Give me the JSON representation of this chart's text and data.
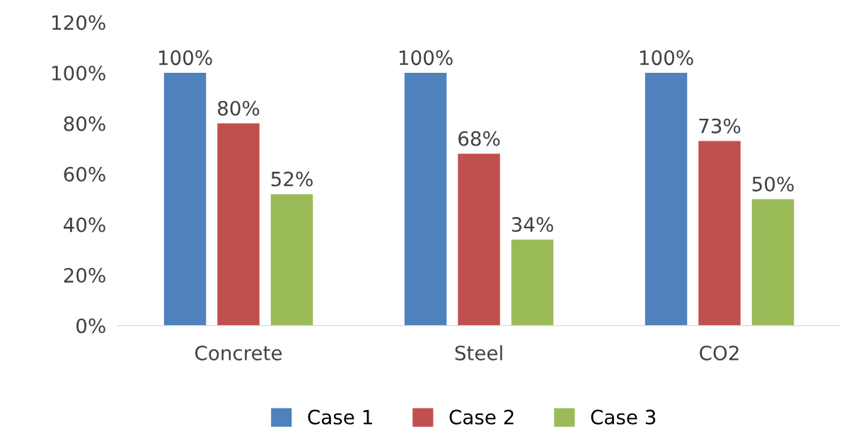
{
  "chart_data": {
    "type": "bar",
    "categories": [
      "Concrete",
      "Steel",
      "CO2"
    ],
    "series": [
      {
        "name": "Case 1",
        "color": "#4f81bd",
        "values": [
          100,
          100,
          100
        ],
        "value_labels": [
          "100%",
          "100%",
          "100%"
        ]
      },
      {
        "name": "Case 2",
        "color": "#c0504d",
        "values": [
          80,
          68,
          73
        ],
        "value_labels": [
          "80%",
          "68%",
          "73%"
        ]
      },
      {
        "name": "Case 3",
        "color": "#9bbb59",
        "values": [
          52,
          34,
          50
        ],
        "value_labels": [
          "52%",
          "34%",
          "50%"
        ]
      }
    ],
    "ylim": [
      0,
      120
    ],
    "yticks": [
      {
        "value": 0,
        "label": "0%"
      },
      {
        "value": 20,
        "label": "20%"
      },
      {
        "value": 40,
        "label": "40%"
      },
      {
        "value": 60,
        "label": "60%"
      },
      {
        "value": 80,
        "label": "80%"
      },
      {
        "value": 100,
        "label": "100%"
      },
      {
        "value": 120,
        "label": "120%"
      }
    ],
    "grid": false,
    "legend": "bottom"
  }
}
